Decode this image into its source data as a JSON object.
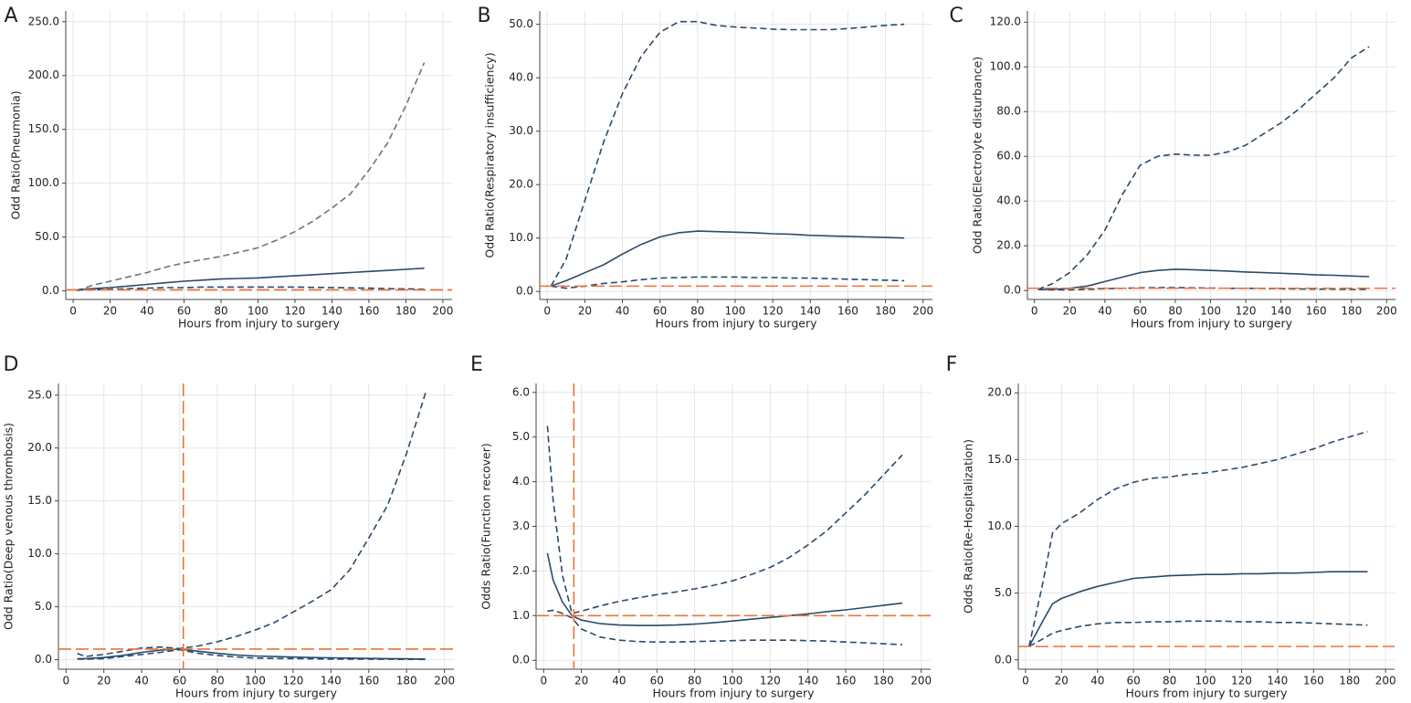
{
  "chart_data": [
    {
      "type": "line",
      "panel": "A",
      "ylabel": "Odd Ratio(Pneumonia)",
      "xlabel": "Hours from injury to surgery",
      "xlim": [
        -4,
        205
      ],
      "xticks": [
        0,
        20,
        40,
        60,
        80,
        100,
        120,
        140,
        160,
        180,
        200
      ],
      "ylim": [
        -8,
        260
      ],
      "yticks": [
        {
          "value": 0,
          "label": "0.0"
        },
        {
          "value": 50,
          "label": "50.0"
        },
        {
          "value": 100,
          "label": "100.0"
        },
        {
          "value": 150,
          "label": "150.0"
        },
        {
          "value": 200,
          "label": "200.0"
        },
        {
          "value": 250,
          "label": "250.0"
        }
      ],
      "grid": true,
      "hline": 1,
      "ref_color": "#e8743b",
      "x": [
        2,
        10,
        20,
        30,
        40,
        50,
        60,
        70,
        80,
        90,
        100,
        110,
        120,
        130,
        140,
        150,
        160,
        170,
        180,
        190
      ],
      "series": [
        {
          "color": "#6a7480",
          "dash": true,
          "values": [
            0,
            5,
            9,
            13,
            17,
            22,
            26,
            29,
            32,
            36,
            40,
            47,
            55,
            65,
            77,
            90,
            112,
            137,
            172,
            212
          ]
        },
        {
          "color": "#2b4a6b",
          "dash": false,
          "values": [
            1,
            2,
            3,
            4.5,
            6,
            7.5,
            9,
            10,
            11,
            11.5,
            12,
            13,
            14,
            15,
            16,
            17,
            18,
            19,
            20,
            21
          ]
        },
        {
          "color": "#2b4a6b",
          "dash": true,
          "values": [
            1,
            1,
            1.5,
            2,
            2.5,
            3,
            3,
            3.5,
            3.5,
            3.5,
            3.5,
            3.5,
            3.5,
            3.2,
            3,
            2.8,
            2.5,
            2,
            1.8,
            1.5
          ]
        }
      ]
    },
    {
      "type": "line",
      "panel": "B",
      "ylabel": "Odd Ratio(Respiratory insufficiency)",
      "xlabel": "Hours from injury to surgery",
      "xlim": [
        -4,
        205
      ],
      "xticks": [
        0,
        20,
        40,
        60,
        80,
        100,
        120,
        140,
        160,
        180,
        200
      ],
      "ylim": [
        -1.5,
        52.5
      ],
      "yticks": [
        {
          "value": 0,
          "label": "0.0"
        },
        {
          "value": 10,
          "label": "10.0"
        },
        {
          "value": 20,
          "label": "20.0"
        },
        {
          "value": 30,
          "label": "30.0"
        },
        {
          "value": 40,
          "label": "40.0"
        },
        {
          "value": 50,
          "label": "50.0"
        }
      ],
      "grid": true,
      "hline": 1,
      "ref_color": "#e8743b",
      "x": [
        2,
        10,
        20,
        30,
        40,
        50,
        60,
        70,
        80,
        90,
        100,
        110,
        120,
        130,
        140,
        150,
        160,
        170,
        180,
        190
      ],
      "series": [
        {
          "color": "#2b4a6b",
          "dash": true,
          "values": [
            1,
            6,
            17,
            28,
            37,
            44,
            48.5,
            50.5,
            50.5,
            49.8,
            49.5,
            49.3,
            49.1,
            49,
            49,
            49,
            49.2,
            49.5,
            49.8,
            50
          ]
        },
        {
          "color": "#2b4a6b",
          "dash": false,
          "values": [
            1,
            2,
            3.5,
            5,
            7,
            8.8,
            10.2,
            11,
            11.3,
            11.2,
            11.1,
            11,
            10.8,
            10.7,
            10.5,
            10.4,
            10.3,
            10.2,
            10.1,
            10
          ]
        },
        {
          "color": "#2b4a6b",
          "dash": true,
          "values": [
            1,
            0.6,
            1,
            1.5,
            1.8,
            2.2,
            2.5,
            2.6,
            2.7,
            2.7,
            2.7,
            2.6,
            2.6,
            2.5,
            2.5,
            2.4,
            2.3,
            2.2,
            2.1,
            2
          ]
        }
      ]
    },
    {
      "type": "line",
      "panel": "C",
      "ylabel": "Odd Ratio(Electrolyte disturbance)",
      "xlabel": "Hours from injury to surgery",
      "xlim": [
        -4,
        205
      ],
      "xticks": [
        0,
        20,
        40,
        60,
        80,
        100,
        120,
        140,
        160,
        180,
        200
      ],
      "ylim": [
        -4,
        125
      ],
      "yticks": [
        {
          "value": 0,
          "label": "0.0"
        },
        {
          "value": 20,
          "label": "20.0"
        },
        {
          "value": 40,
          "label": "40.0"
        },
        {
          "value": 60,
          "label": "60.0"
        },
        {
          "value": 80,
          "label": "80.0"
        },
        {
          "value": 100,
          "label": "100.0"
        },
        {
          "value": 120,
          "label": "120.0"
        }
      ],
      "grid": true,
      "hline": 1,
      "ref_color": "#e8743b",
      "x": [
        2,
        10,
        20,
        30,
        40,
        50,
        60,
        70,
        80,
        90,
        100,
        110,
        120,
        130,
        140,
        150,
        160,
        170,
        180,
        190
      ],
      "series": [
        {
          "color": "#2b4a6b",
          "dash": true,
          "values": [
            0.5,
            3,
            8,
            16,
            27,
            43,
            56,
            60,
            61,
            60.5,
            60.5,
            62,
            65,
            70,
            75,
            81,
            88,
            95,
            104,
            109
          ]
        },
        {
          "color": "#2b4a6b",
          "dash": false,
          "values": [
            0.5,
            0.5,
            1,
            2,
            4,
            6,
            8,
            9,
            9.5,
            9.3,
            9,
            8.7,
            8.3,
            8,
            7.7,
            7.4,
            7,
            6.8,
            6.5,
            6.2
          ]
        },
        {
          "color": "#2b4a6b",
          "dash": true,
          "values": [
            0.5,
            0.3,
            0.3,
            0.5,
            0.8,
            1,
            1.2,
            1.3,
            1.3,
            1.2,
            1.1,
            1,
            1,
            0.9,
            0.8,
            0.7,
            0.6,
            0.6,
            0.5,
            0.5
          ]
        }
      ]
    },
    {
      "type": "line",
      "panel": "D",
      "ylabel": "Odd Ratio(Deep venous thrombosis)",
      "xlabel": "Hours from injury to surgery",
      "xlim": [
        -4,
        205
      ],
      "xticks": [
        0,
        20,
        40,
        60,
        80,
        100,
        120,
        140,
        160,
        180,
        200
      ],
      "ylim": [
        -0.9,
        26.1
      ],
      "yticks": [
        {
          "value": 0,
          "label": "0.0"
        },
        {
          "value": 5,
          "label": "5.0"
        },
        {
          "value": 10,
          "label": "10.0"
        },
        {
          "value": 15,
          "label": "15.0"
        },
        {
          "value": 20,
          "label": "20.0"
        },
        {
          "value": 25,
          "label": "25.0"
        }
      ],
      "grid": true,
      "hline": 1,
      "vline": 62,
      "ref_color": "#e8743b",
      "x": [
        6,
        10,
        20,
        30,
        40,
        50,
        60,
        70,
        80,
        90,
        100,
        110,
        120,
        130,
        140,
        150,
        160,
        170,
        180,
        190
      ],
      "series": [
        {
          "color": "#2b4a6b",
          "dash": true,
          "values": [
            0.6,
            0.3,
            0.5,
            0.8,
            1.1,
            1.2,
            1.05,
            1.3,
            1.7,
            2.2,
            2.8,
            3.5,
            4.5,
            5.5,
            6.6,
            8.5,
            11.5,
            14.6,
            19.5,
            25.2
          ]
        },
        {
          "color": "#2b4a6b",
          "dash": false,
          "values": [
            0.1,
            0.1,
            0.2,
            0.4,
            0.7,
            0.9,
            1,
            0.8,
            0.6,
            0.45,
            0.35,
            0.3,
            0.25,
            0.2,
            0.18,
            0.15,
            0.12,
            0.1,
            0.08,
            0.06
          ]
        },
        {
          "color": "#2b4a6b",
          "dash": true,
          "values": [
            0.05,
            0.05,
            0.1,
            0.3,
            0.5,
            0.7,
            0.95,
            0.6,
            0.4,
            0.25,
            0.15,
            0.12,
            0.1,
            0.08,
            0.06,
            0.05,
            0.05,
            0.04,
            0.03,
            0.02
          ]
        }
      ]
    },
    {
      "type": "line",
      "panel": "E",
      "ylabel": "Odds Ratio(Function recover)",
      "xlabel": "Hours from injury to surgery",
      "xlim": [
        -4,
        205
      ],
      "xticks": [
        0,
        20,
        40,
        60,
        80,
        100,
        120,
        140,
        160,
        180,
        200
      ],
      "ylim": [
        -0.2,
        6.2
      ],
      "yticks": [
        {
          "value": 0,
          "label": "0.0"
        },
        {
          "value": 1,
          "label": "1.0"
        },
        {
          "value": 2,
          "label": "2.0"
        },
        {
          "value": 3,
          "label": "3.0"
        },
        {
          "value": 4,
          "label": "4.0"
        },
        {
          "value": 5,
          "label": "5.0"
        },
        {
          "value": 6,
          "label": "6.0"
        }
      ],
      "grid": true,
      "hline": 1,
      "vline": 16,
      "ref_color": "#e8743b",
      "x": [
        2,
        5,
        10,
        15,
        20,
        30,
        40,
        50,
        60,
        70,
        80,
        90,
        100,
        110,
        120,
        130,
        140,
        150,
        160,
        170,
        180,
        190
      ],
      "series": [
        {
          "color": "#2b4a6b",
          "dash": true,
          "values": [
            5.25,
            3.6,
            1.9,
            1.05,
            1.1,
            1.22,
            1.32,
            1.4,
            1.47,
            1.53,
            1.6,
            1.68,
            1.78,
            1.92,
            2.08,
            2.3,
            2.58,
            2.9,
            3.3,
            3.7,
            4.15,
            4.6
          ]
        },
        {
          "color": "#2b4a6b",
          "dash": false,
          "values": [
            2.4,
            1.8,
            1.3,
            1,
            0.9,
            0.82,
            0.79,
            0.78,
            0.78,
            0.79,
            0.81,
            0.84,
            0.88,
            0.92,
            0.96,
            1,
            1.04,
            1.09,
            1.13,
            1.18,
            1.23,
            1.28
          ]
        },
        {
          "color": "#2b4a6b",
          "dash": true,
          "values": [
            1.1,
            1.12,
            1.05,
            0.95,
            0.7,
            0.52,
            0.45,
            0.42,
            0.41,
            0.41,
            0.42,
            0.43,
            0.44,
            0.45,
            0.45,
            0.45,
            0.44,
            0.43,
            0.41,
            0.39,
            0.37,
            0.35
          ]
        }
      ]
    },
    {
      "type": "line",
      "panel": "F",
      "ylabel": "Odds Ratio(Re-Hospitalization)",
      "xlabel": "Hours from injury to surgery",
      "xlim": [
        -4,
        205
      ],
      "xticks": [
        0,
        20,
        40,
        60,
        80,
        100,
        120,
        140,
        160,
        180,
        200
      ],
      "ylim": [
        -0.7,
        20.7
      ],
      "yticks": [
        {
          "value": 0,
          "label": "0.0"
        },
        {
          "value": 5,
          "label": "5.0"
        },
        {
          "value": 10,
          "label": "10.0"
        },
        {
          "value": 15,
          "label": "15.0"
        },
        {
          "value": 20,
          "label": "20.0"
        }
      ],
      "grid": true,
      "hline": 1,
      "ref_color": "#e8743b",
      "x": [
        2,
        10,
        15,
        20,
        30,
        40,
        50,
        60,
        70,
        80,
        90,
        100,
        110,
        120,
        130,
        140,
        150,
        160,
        170,
        180,
        190
      ],
      "series": [
        {
          "color": "#2b4a6b",
          "dash": true,
          "values": [
            1,
            6,
            9.5,
            10.2,
            11,
            12,
            12.8,
            13.3,
            13.6,
            13.7,
            13.9,
            14,
            14.2,
            14.4,
            14.7,
            15,
            15.4,
            15.8,
            16.3,
            16.7,
            17.1
          ]
        },
        {
          "color": "#2b4a6b",
          "dash": false,
          "values": [
            1,
            3,
            4.2,
            4.6,
            5.1,
            5.5,
            5.8,
            6.1,
            6.2,
            6.3,
            6.35,
            6.4,
            6.4,
            6.45,
            6.45,
            6.5,
            6.5,
            6.55,
            6.6,
            6.6,
            6.6
          ]
        },
        {
          "color": "#2b4a6b",
          "dash": true,
          "values": [
            1,
            1.6,
            2,
            2.2,
            2.5,
            2.7,
            2.8,
            2.8,
            2.85,
            2.85,
            2.9,
            2.9,
            2.9,
            2.85,
            2.85,
            2.8,
            2.8,
            2.75,
            2.7,
            2.65,
            2.6
          ]
        }
      ]
    }
  ]
}
